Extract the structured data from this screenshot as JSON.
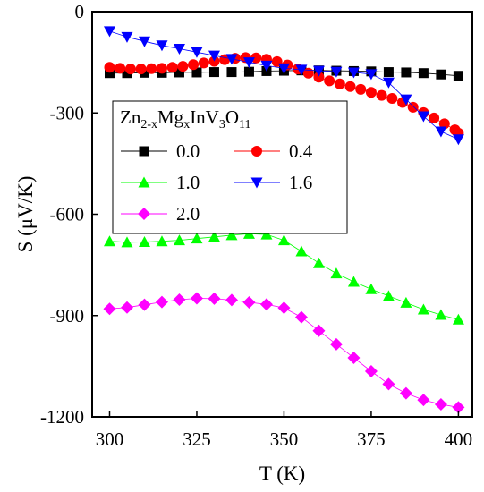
{
  "chart_data": {
    "type": "scatter",
    "xlabel": "T  (K)",
    "ylabel": "S  (μV/K)",
    "xlim": [
      295,
      404
    ],
    "ylim": [
      -1200,
      0
    ],
    "xticks": [
      300,
      325,
      350,
      375,
      400
    ],
    "yticks": [
      0,
      -300,
      -600,
      -900,
      -1200
    ],
    "grid": false,
    "legend": {
      "placement": "upper-left",
      "columns": 2,
      "title": {
        "base": "Zn",
        "sub1": "2-x",
        "mid1": "Mg",
        "sub2": "x",
        "mid2": "InV",
        "sub3": "3",
        "mid3": "O",
        "sub4": "11"
      }
    },
    "series": [
      {
        "name": "0.0",
        "color": "#000000",
        "marker": "square",
        "x": [
          300,
          305,
          310,
          315,
          320,
          325,
          330,
          335,
          340,
          345,
          350,
          355,
          360,
          365,
          370,
          375,
          380,
          385,
          390,
          395,
          400
        ],
        "y": [
          -182,
          -182,
          -181,
          -181,
          -180,
          -180,
          -179,
          -179,
          -178,
          -176,
          -175,
          -174,
          -174,
          -175,
          -176,
          -177,
          -179,
          -180,
          -182,
          -186,
          -190
        ]
      },
      {
        "name": "0.4",
        "color": "#ff0000",
        "marker": "circle",
        "x": [
          300,
          303,
          306,
          309,
          312,
          315,
          318,
          321,
          324,
          327,
          330,
          333,
          336,
          339,
          342,
          345,
          348,
          351,
          354,
          357,
          360,
          363,
          366,
          369,
          372,
          375,
          378,
          381,
          384,
          387,
          390,
          393,
          396,
          399,
          400
        ],
        "y": [
          -165,
          -168,
          -170,
          -170,
          -169,
          -168,
          -165,
          -162,
          -157,
          -152,
          -147,
          -142,
          -138,
          -136,
          -137,
          -141,
          -148,
          -158,
          -170,
          -182,
          -194,
          -205,
          -214,
          -222,
          -230,
          -239,
          -248,
          -257,
          -269,
          -283,
          -299,
          -315,
          -332,
          -350,
          -360
        ]
      },
      {
        "name": "1.0",
        "color": "#00ff00",
        "marker": "triangle-up",
        "x": [
          300,
          305,
          310,
          315,
          320,
          325,
          330,
          335,
          340,
          345,
          350,
          355,
          360,
          365,
          370,
          375,
          380,
          385,
          390,
          395,
          400
        ],
        "y": [
          -680,
          -683,
          -682,
          -680,
          -677,
          -672,
          -667,
          -662,
          -658,
          -660,
          -677,
          -710,
          -745,
          -775,
          -800,
          -822,
          -842,
          -862,
          -882,
          -898,
          -912
        ]
      },
      {
        "name": "1.6",
        "color": "#0000ff",
        "marker": "triangle-down",
        "x": [
          300,
          305,
          310,
          315,
          320,
          325,
          330,
          335,
          340,
          345,
          350,
          355,
          360,
          365,
          370,
          375,
          380,
          385,
          390,
          395,
          400
        ],
        "y": [
          -58,
          -75,
          -88,
          -100,
          -110,
          -120,
          -130,
          -140,
          -150,
          -160,
          -168,
          -172,
          -175,
          -178,
          -180,
          -185,
          -210,
          -260,
          -310,
          -355,
          -378
        ]
      },
      {
        "name": "2.0",
        "color": "#ff00ff",
        "marker": "diamond",
        "x": [
          300,
          305,
          310,
          315,
          320,
          325,
          330,
          335,
          340,
          345,
          350,
          355,
          360,
          365,
          370,
          375,
          380,
          385,
          390,
          395,
          400
        ],
        "y": [
          -880,
          -876,
          -868,
          -860,
          -853,
          -849,
          -850,
          -854,
          -861,
          -867,
          -877,
          -905,
          -945,
          -985,
          -1025,
          -1065,
          -1103,
          -1130,
          -1150,
          -1163,
          -1172
        ]
      }
    ]
  }
}
